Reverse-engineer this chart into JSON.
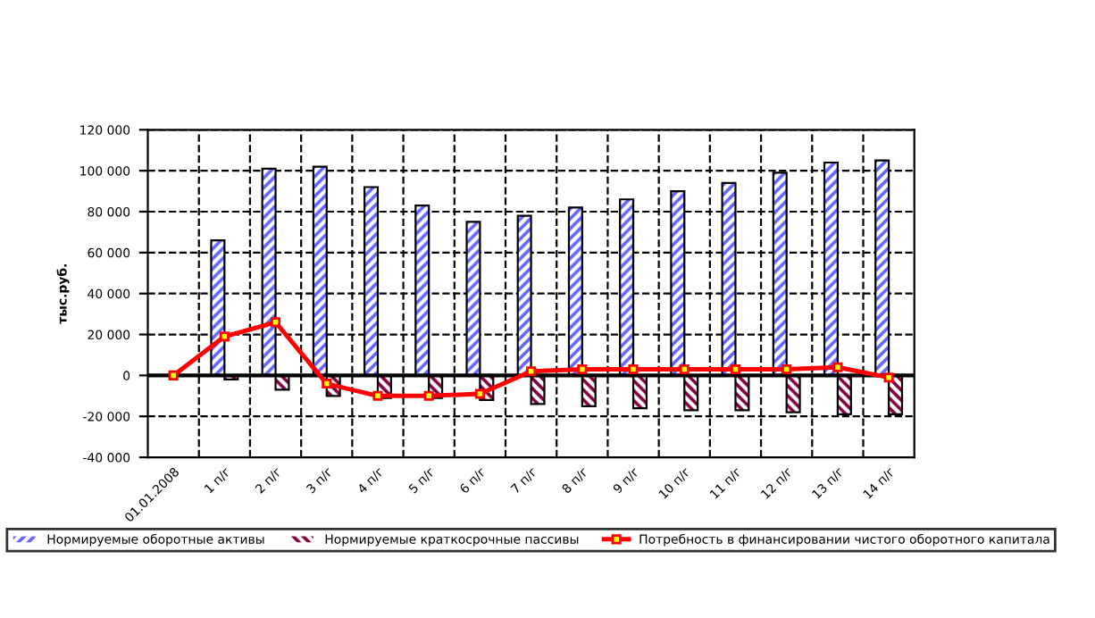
{
  "chart_data": {
    "type": "bar",
    "ylabel": "тыс.руб.",
    "categories": [
      "01.01.2008",
      "1 п/г",
      "2 п/г",
      "3 п/г",
      "4 п/г",
      "5 п/г",
      "6 п/г",
      "7 п/г",
      "8 п/г",
      "9 п/г",
      "10 п/г",
      "11 п/г",
      "12 п/г",
      "13 п/г",
      "14 п/г"
    ],
    "series": [
      {
        "name": "Нормируемые оборотные активы",
        "color": "#6666ff",
        "values": [
          null,
          66000,
          101000,
          102000,
          92000,
          83000,
          75000,
          78000,
          82000,
          86000,
          90000,
          94000,
          99000,
          104000,
          105000
        ]
      },
      {
        "name": "Нормируемые краткосрочные пассивы",
        "color": "#800040",
        "values": [
          null,
          -2000,
          -7000,
          -10000,
          -11000,
          -11000,
          -12000,
          -14000,
          -15000,
          -16000,
          -17000,
          -17000,
          -18000,
          -19000,
          -19000
        ]
      },
      {
        "name": "Потребность в финансировании чистого оборотного капитала",
        "type": "line",
        "color": "#ff0000",
        "marker": "square",
        "values": [
          0,
          19000,
          26000,
          -4000,
          -10000,
          -10000,
          -9000,
          2000,
          3000,
          3000,
          3000,
          3000,
          3000,
          4000,
          -1000
        ]
      }
    ],
    "ylim": [
      -40000,
      120000
    ],
    "yticks": [
      {
        "value": -40000,
        "label": "-40 000"
      },
      {
        "value": -20000,
        "label": "-20 000"
      },
      {
        "value": 0,
        "label": "0"
      },
      {
        "value": 20000,
        "label": "20 000"
      },
      {
        "value": 40000,
        "label": "40 000"
      },
      {
        "value": 60000,
        "label": "60 000"
      },
      {
        "value": 80000,
        "label": "80 000"
      },
      {
        "value": 100000,
        "label": "100 000"
      },
      {
        "value": 120000,
        "label": "120 000"
      }
    ],
    "grid": true,
    "legend": "bottom"
  }
}
